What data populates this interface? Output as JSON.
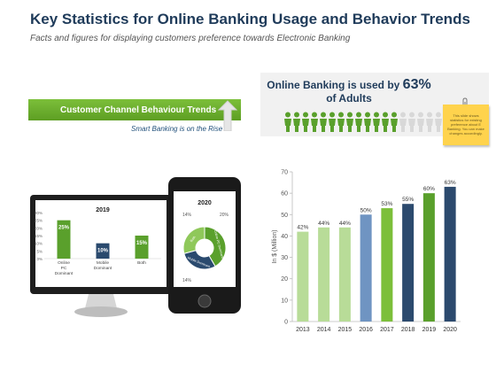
{
  "header": {
    "title": "Key Statistics for Online Banking Usage and Behavior Trends",
    "subtitle": "Facts and figures for displaying customers preference towards  Electronic Banking"
  },
  "banner": {
    "label": "Customer Channel Behaviour Trends",
    "sub": "Smart Banking is on the Rise"
  },
  "usage": {
    "title_prefix": "Online Banking is used by",
    "percent": "63%",
    "title_suffix": "of Adults",
    "people_total": 20,
    "people_filled": 13,
    "filled_color": "#5aa02c",
    "empty_color": "#d8d8d8"
  },
  "note": {
    "text": "This slide shows statistics for existing preference about E Banking. You can make changes accordingly."
  },
  "chart_data": [
    {
      "type": "bar",
      "title": "2019",
      "categories": [
        "Online PC Dominant",
        "Mobile Dominant",
        "Both"
      ],
      "values": [
        25,
        10,
        15
      ],
      "value_labels": [
        "25%",
        "10%",
        "15%"
      ],
      "ylim": [
        0,
        30
      ],
      "yticks": [
        "0%",
        "5%",
        "10%",
        "15%",
        "20%",
        "25%",
        "30%"
      ],
      "colors": [
        "#5aa02c",
        "#2a4a6e",
        "#5aa02c"
      ]
    },
    {
      "type": "pie",
      "title": "2020",
      "labels": [
        "Online PC Dominant",
        "Mobile Dominant",
        "Both"
      ],
      "values": [
        20,
        14,
        14
      ],
      "value_labels": [
        "20%",
        "14%",
        "14%"
      ],
      "colors": [
        "#5aa02c",
        "#2a4a6e",
        "#8fc85a"
      ]
    },
    {
      "type": "bar",
      "categories": [
        "2013",
        "2014",
        "2015",
        "2016",
        "2017",
        "2018",
        "2019",
        "2020"
      ],
      "values": [
        42,
        44,
        44,
        50,
        53,
        55,
        60,
        63
      ],
      "value_labels": [
        "42%",
        "44%",
        "44%",
        "50%",
        "53%",
        "55%",
        "60%",
        "63%"
      ],
      "ylabel": "In $ (Million)",
      "ylim": [
        0,
        70
      ],
      "yticks": [
        "0",
        "10",
        "20",
        "30",
        "40",
        "50",
        "60",
        "70"
      ],
      "colors": [
        "#b8dc98",
        "#b8dc98",
        "#b8dc98",
        "#6f94c2",
        "#7cbf3a",
        "#2c4a6e",
        "#5aa02c",
        "#2c4a6e"
      ],
      "grid": false
    }
  ]
}
